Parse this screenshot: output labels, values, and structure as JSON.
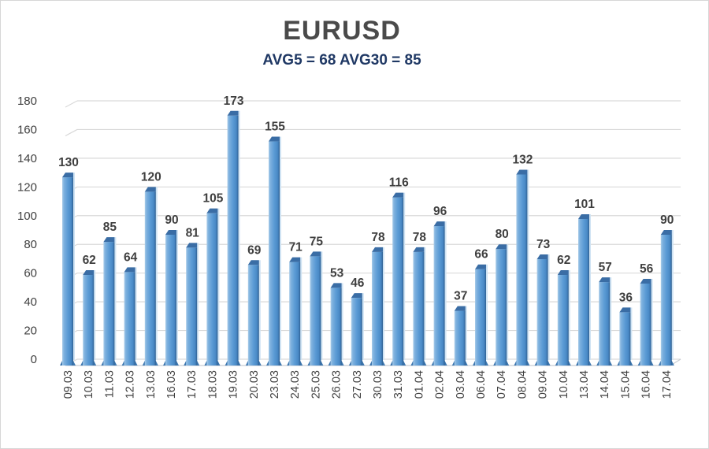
{
  "window": {
    "background": "#ffffff",
    "border_color": "#d6d6d6"
  },
  "chart_data": {
    "type": "bar",
    "style": "3d-column",
    "title": "EURUSD",
    "subtitle": "AVG5 = 68 AVG30 = 85",
    "avg5": 68,
    "avg30": 85,
    "categories": [
      "09.03",
      "10.03",
      "11.03",
      "12.03",
      "13.03",
      "16.03",
      "17.03",
      "18.03",
      "19.03",
      "20.03",
      "23.03",
      "24.03",
      "25.03",
      "26.03",
      "27.03",
      "30.03",
      "31.03",
      "01.04",
      "02.04",
      "03.04",
      "06.04",
      "07.04",
      "08.04",
      "09.04",
      "10.04",
      "13.04",
      "14.04",
      "15.04",
      "16.04",
      "17.04"
    ],
    "values": [
      130,
      62,
      85,
      64,
      120,
      90,
      81,
      105,
      173,
      69,
      155,
      71,
      75,
      53,
      46,
      78,
      116,
      78,
      96,
      37,
      66,
      80,
      132,
      73,
      62,
      101,
      57,
      36,
      56,
      90
    ],
    "ylim": [
      0,
      180
    ],
    "yticks": [
      0,
      20,
      40,
      60,
      80,
      100,
      120,
      140,
      160,
      180
    ],
    "grid": true,
    "legend_position": "none",
    "colors": {
      "bar_light": "#a9cce9",
      "bar_mid": "#5b9bd5",
      "bar_dark": "#2d5e8c",
      "bar_top_face": "#3a6da5",
      "bar_foot": "#3d77b0",
      "bar_outer_edge": "#cfe3f3",
      "gridline": "#d9d9d9",
      "floor_line": "#c9cdd3",
      "value_label": "#3f3f3f",
      "tick_label": "#3f3f3f",
      "title": "#4a4a4a",
      "subtitle": "#1f3864"
    }
  }
}
